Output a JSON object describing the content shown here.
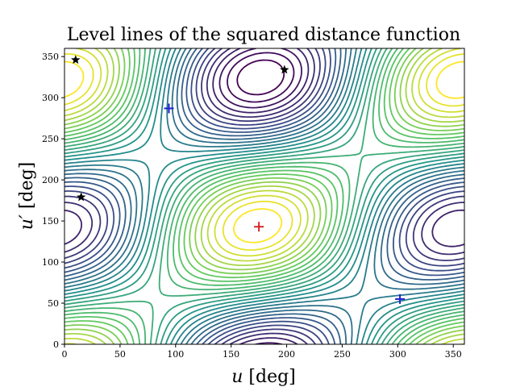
{
  "chart_data": {
    "type": "contour",
    "title": "Level lines of the squared distance function",
    "xlabel_symbol": "u",
    "xlabel_unit": " [deg]",
    "ylabel_symbol": "u′",
    "ylabel_unit": " [deg]",
    "xlim": [
      0,
      360
    ],
    "ylim": [
      0,
      360
    ],
    "xticks": [
      0,
      50,
      100,
      150,
      200,
      250,
      300,
      350
    ],
    "yticks": [
      0,
      50,
      100,
      150,
      200,
      250,
      300,
      350
    ],
    "xtick_labels": [
      "0",
      "50",
      "100",
      "150",
      "200",
      "250",
      "300",
      "350"
    ],
    "ytick_labels": [
      "0",
      "50",
      "100",
      "150",
      "200",
      "250",
      "300",
      "350"
    ],
    "colormap": [
      "#440154",
      "#3b528b",
      "#21918c",
      "#5ec962",
      "#fde725"
    ],
    "maximum_marker": {
      "u": 175,
      "u_prime": 143,
      "color": "#d62728",
      "symbol": "+"
    },
    "minimum_markers": [
      {
        "u": 94,
        "u_prime": 287,
        "color": "#1f1fd6",
        "symbol": "+"
      },
      {
        "u": 302,
        "u_prime": 55,
        "color": "#1f1fd6",
        "symbol": "+"
      }
    ],
    "saddle_markers": [
      {
        "u": 10,
        "u_prime": 346,
        "color": "#000000",
        "symbol": "star"
      },
      {
        "u": 198,
        "u_prime": 334,
        "color": "#000000",
        "symbol": "star"
      },
      {
        "u": 15,
        "u_prime": 179,
        "color": "#000000",
        "symbol": "star"
      }
    ],
    "grid": false
  }
}
